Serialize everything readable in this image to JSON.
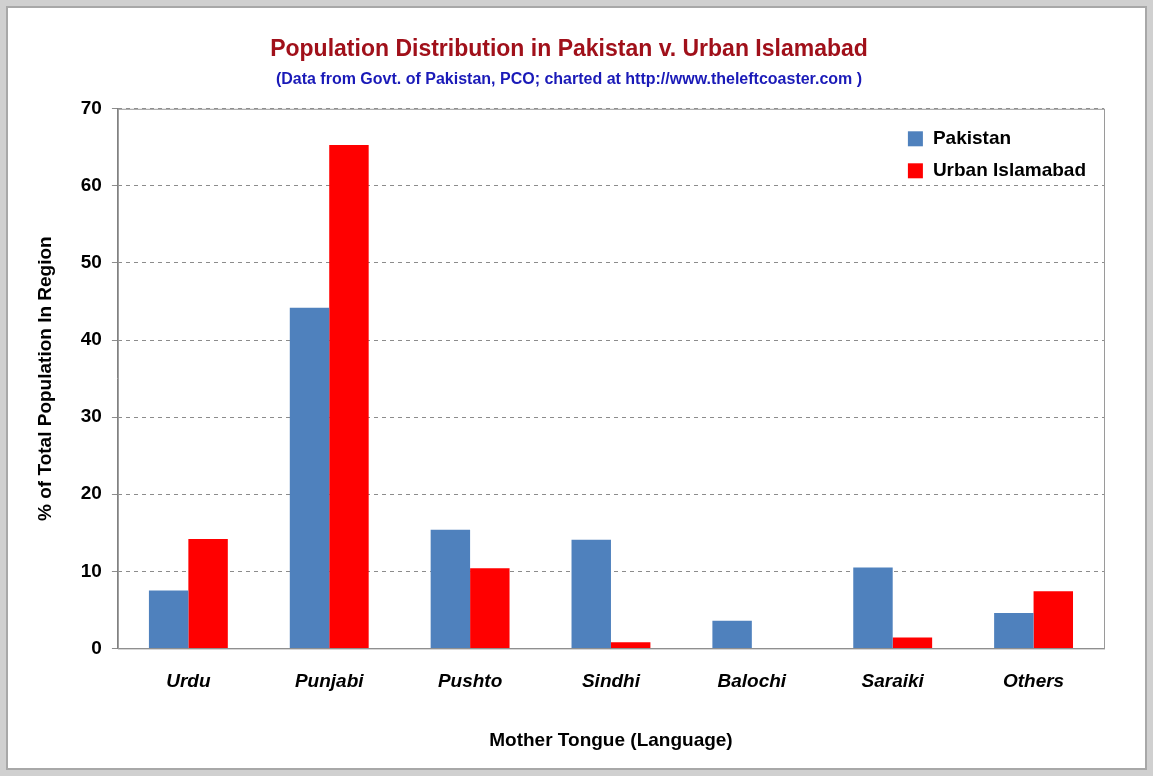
{
  "chart_data": {
    "type": "bar",
    "title": "Population Distribution in Pakistan v. Urban Islamabad",
    "subtitle": "(Data from Govt. of Pakistan, PCO; charted at http://www.theleftcoaster.com )",
    "x_label": "Mother Tongue (Language)",
    "y_label": "% of Total Population In Region",
    "categories": [
      "Urdu",
      "Punjabi",
      "Pushto",
      "Sindhi",
      "Balochi",
      "Saraiki",
      "Others"
    ],
    "series": [
      {
        "name": "Pakistan",
        "color": "#4f81bd",
        "values": [
          7.5,
          44.2,
          15.4,
          14.1,
          3.6,
          10.5,
          4.6
        ]
      },
      {
        "name": "Urban Islamabad",
        "color": "#ff0000",
        "values": [
          14.2,
          65.3,
          10.4,
          0.8,
          0,
          1.4,
          7.4
        ]
      }
    ],
    "ylim": [
      0,
      70
    ],
    "yticks": [
      0,
      10,
      20,
      30,
      40,
      50,
      60,
      70
    ],
    "grid": true,
    "legend": "top-right",
    "data_labels": false
  }
}
